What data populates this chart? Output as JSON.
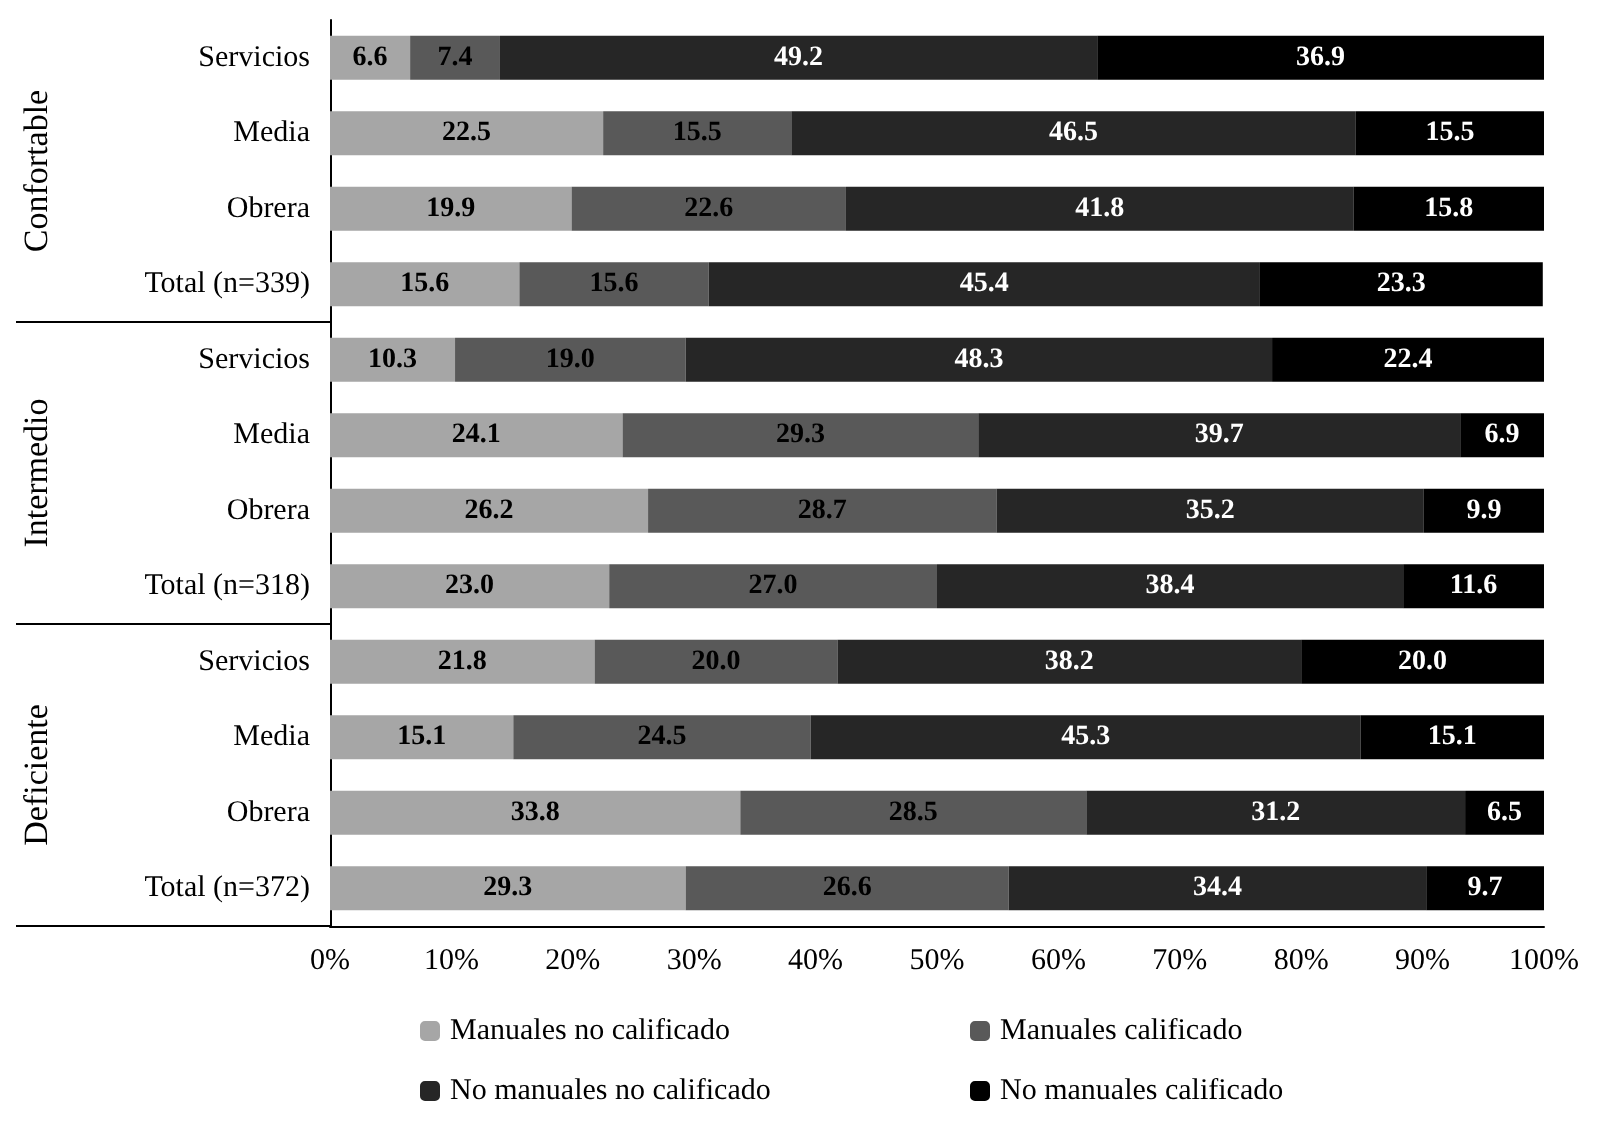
{
  "chart_data": {
    "type": "bar",
    "orientation": "horizontal",
    "stacked": true,
    "categories": [
      "Servicios",
      "Media",
      "Obrera",
      "Total (n=339)",
      "Servicios",
      "Media",
      "Obrera",
      "Total (n=318)",
      "Servicios",
      "Media",
      "Obrera",
      "Total (n=372)"
    ],
    "series": [
      {
        "name": "Manuales no calificado",
        "color": "#a6a6a6",
        "values": [
          6.6,
          22.5,
          19.9,
          15.6,
          10.3,
          24.1,
          26.2,
          23.0,
          21.8,
          15.1,
          33.8,
          29.3
        ],
        "value_labels": [
          "6.6",
          "22.5",
          "19.9",
          "15.6",
          "10.3",
          "24.1",
          "26.2",
          "23.0",
          "21.8",
          "15.1",
          "33.8",
          "29.3"
        ]
      },
      {
        "name": "Manuales calificado",
        "color": "#595959",
        "values": [
          7.4,
          15.5,
          22.6,
          15.6,
          19.0,
          29.3,
          28.7,
          27.0,
          20.0,
          24.5,
          28.5,
          26.6
        ],
        "value_labels": [
          "7.4",
          "15.5",
          "22.6",
          "15.6",
          "19.0",
          "29.3",
          "28.7",
          "27.0",
          "20.0",
          "24.5",
          "28.5",
          "26.6"
        ]
      },
      {
        "name": "No manuales no calificado",
        "color": "#262626",
        "values": [
          49.2,
          46.5,
          41.8,
          45.4,
          48.3,
          39.7,
          35.2,
          38.4,
          38.2,
          45.3,
          31.2,
          34.4
        ],
        "value_labels": [
          "49.2",
          "46.5",
          "41.8",
          "45.4",
          "48.3",
          "39.7",
          "35.2",
          "38.4",
          "38.2",
          "45.3",
          "31.2",
          "34.4"
        ]
      },
      {
        "name": "No manuales calificado",
        "color": "#000000",
        "values": [
          36.9,
          15.5,
          15.8,
          23.3,
          22.4,
          6.9,
          9.9,
          11.6,
          20.0,
          15.1,
          6.5,
          9.7
        ],
        "value_labels": [
          "36.9",
          "15.5",
          "15.8",
          "23.3",
          "22.4",
          "6.9",
          "9.9",
          "11.6",
          "20.0",
          "15.1",
          "6.5",
          "9.7"
        ]
      }
    ],
    "xlim": [
      0,
      100
    ],
    "xticks": [
      {
        "value": 0,
        "label": "0%"
      },
      {
        "value": 10,
        "label": "10%"
      },
      {
        "value": 20,
        "label": "20%"
      },
      {
        "value": 30,
        "label": "30%"
      },
      {
        "value": 40,
        "label": "40%"
      },
      {
        "value": 50,
        "label": "50%"
      },
      {
        "value": 60,
        "label": "60%"
      },
      {
        "value": 70,
        "label": "70%"
      },
      {
        "value": 80,
        "label": "80%"
      },
      {
        "value": 90,
        "label": "90%"
      },
      {
        "value": 100,
        "label": "100%"
      }
    ],
    "annotations": [
      "Confortable",
      "Intermedio",
      "Deficiente"
    ],
    "legend": "bottom",
    "grid": false
  }
}
